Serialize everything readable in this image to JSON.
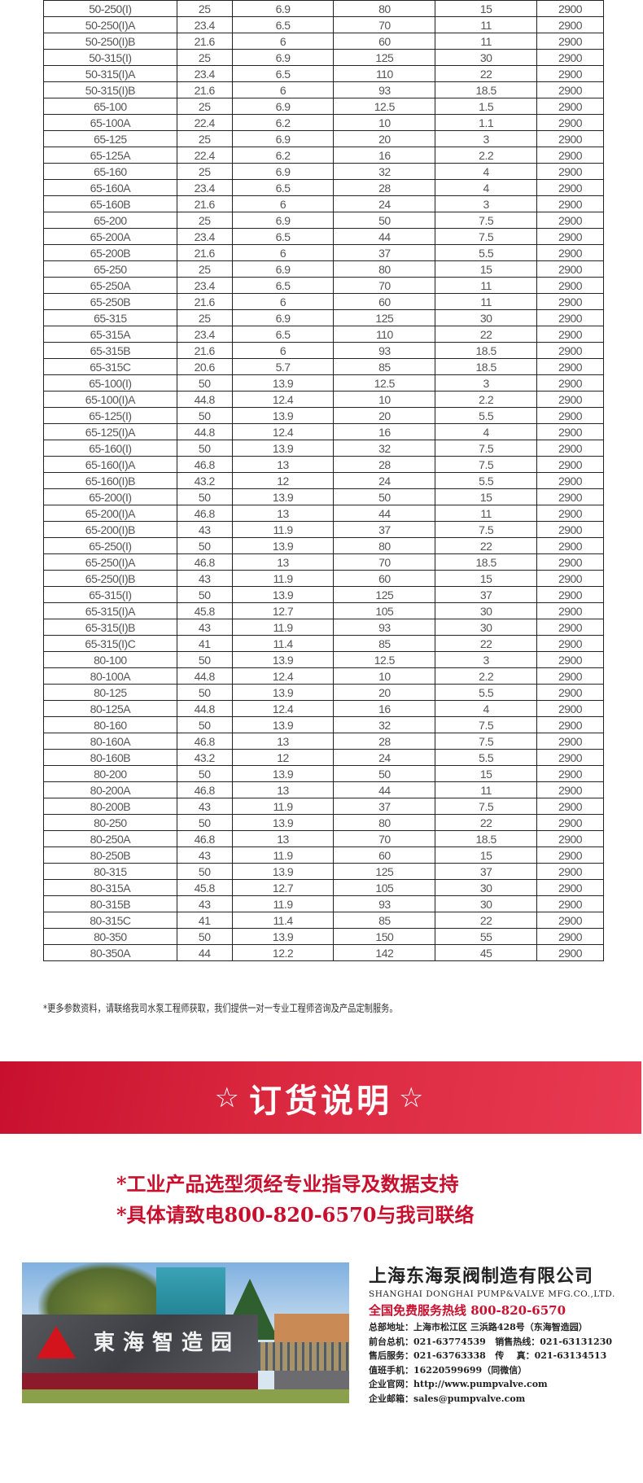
{
  "table": {
    "rows": [
      [
        "50-250(I)",
        "25",
        "6.9",
        "80",
        "15",
        "2900"
      ],
      [
        "50-250(I)A",
        "23.4",
        "6.5",
        "70",
        "11",
        "2900"
      ],
      [
        "50-250(I)B",
        "21.6",
        "6",
        "60",
        "11",
        "2900"
      ],
      [
        "50-315(I)",
        "25",
        "6.9",
        "125",
        "30",
        "2900"
      ],
      [
        "50-315(I)A",
        "23.4",
        "6.5",
        "110",
        "22",
        "2900"
      ],
      [
        "50-315(I)B",
        "21.6",
        "6",
        "93",
        "18.5",
        "2900"
      ],
      [
        "65-100",
        "25",
        "6.9",
        "12.5",
        "1.5",
        "2900"
      ],
      [
        "65-100A",
        "22.4",
        "6.2",
        "10",
        "1.1",
        "2900"
      ],
      [
        "65-125",
        "25",
        "6.9",
        "20",
        "3",
        "2900"
      ],
      [
        "65-125A",
        "22.4",
        "6.2",
        "16",
        "2.2",
        "2900"
      ],
      [
        "65-160",
        "25",
        "6.9",
        "32",
        "4",
        "2900"
      ],
      [
        "65-160A",
        "23.4",
        "6.5",
        "28",
        "4",
        "2900"
      ],
      [
        "65-160B",
        "21.6",
        "6",
        "24",
        "3",
        "2900"
      ],
      [
        "65-200",
        "25",
        "6.9",
        "50",
        "7.5",
        "2900"
      ],
      [
        "65-200A",
        "23.4",
        "6.5",
        "44",
        "7.5",
        "2900"
      ],
      [
        "65-200B",
        "21.6",
        "6",
        "37",
        "5.5",
        "2900"
      ],
      [
        "65-250",
        "25",
        "6.9",
        "80",
        "15",
        "2900"
      ],
      [
        "65-250A",
        "23.4",
        "6.5",
        "70",
        "11",
        "2900"
      ],
      [
        "65-250B",
        "21.6",
        "6",
        "60",
        "11",
        "2900"
      ],
      [
        "65-315",
        "25",
        "6.9",
        "125",
        "30",
        "2900"
      ],
      [
        "65-315A",
        "23.4",
        "6.5",
        "110",
        "22",
        "2900"
      ],
      [
        "65-315B",
        "21.6",
        "6",
        "93",
        "18.5",
        "2900"
      ],
      [
        "65-315C",
        "20.6",
        "5.7",
        "85",
        "18.5",
        "2900"
      ],
      [
        "65-100(I)",
        "50",
        "13.9",
        "12.5",
        "3",
        "2900"
      ],
      [
        "65-100(I)A",
        "44.8",
        "12.4",
        "10",
        "2.2",
        "2900"
      ],
      [
        "65-125(I)",
        "50",
        "13.9",
        "20",
        "5.5",
        "2900"
      ],
      [
        "65-125(I)A",
        "44.8",
        "12.4",
        "16",
        "4",
        "2900"
      ],
      [
        "65-160(I)",
        "50",
        "13.9",
        "32",
        "7.5",
        "2900"
      ],
      [
        "65-160(I)A",
        "46.8",
        "13",
        "28",
        "7.5",
        "2900"
      ],
      [
        "65-160(I)B",
        "43.2",
        "12",
        "24",
        "5.5",
        "2900"
      ],
      [
        "65-200(I)",
        "50",
        "13.9",
        "50",
        "15",
        "2900"
      ],
      [
        "65-200(I)A",
        "46.8",
        "13",
        "44",
        "11",
        "2900"
      ],
      [
        "65-200(I)B",
        "43",
        "11.9",
        "37",
        "7.5",
        "2900"
      ],
      [
        "65-250(I)",
        "50",
        "13.9",
        "80",
        "22",
        "2900"
      ],
      [
        "65-250(I)A",
        "46.8",
        "13",
        "70",
        "18.5",
        "2900"
      ],
      [
        "65-250(I)B",
        "43",
        "11.9",
        "60",
        "15",
        "2900"
      ],
      [
        "65-315(I)",
        "50",
        "13.9",
        "125",
        "37",
        "2900"
      ],
      [
        "65-315(I)A",
        "45.8",
        "12.7",
        "105",
        "30",
        "2900"
      ],
      [
        "65-315(I)B",
        "43",
        "11.9",
        "93",
        "30",
        "2900"
      ],
      [
        "65-315(I)C",
        "41",
        "11.4",
        "85",
        "22",
        "2900"
      ],
      [
        "80-100",
        "50",
        "13.9",
        "12.5",
        "3",
        "2900"
      ],
      [
        "80-100A",
        "44.8",
        "12.4",
        "10",
        "2.2",
        "2900"
      ],
      [
        "80-125",
        "50",
        "13.9",
        "20",
        "5.5",
        "2900"
      ],
      [
        "80-125A",
        "44.8",
        "12.4",
        "16",
        "4",
        "2900"
      ],
      [
        "80-160",
        "50",
        "13.9",
        "32",
        "7.5",
        "2900"
      ],
      [
        "80-160A",
        "46.8",
        "13",
        "28",
        "7.5",
        "2900"
      ],
      [
        "80-160B",
        "43.2",
        "12",
        "24",
        "5.5",
        "2900"
      ],
      [
        "80-200",
        "50",
        "13.9",
        "50",
        "15",
        "2900"
      ],
      [
        "80-200A",
        "46.8",
        "13",
        "44",
        "11",
        "2900"
      ],
      [
        "80-200B",
        "43",
        "11.9",
        "37",
        "7.5",
        "2900"
      ],
      [
        "80-250",
        "50",
        "13.9",
        "80",
        "22",
        "2900"
      ],
      [
        "80-250A",
        "46.8",
        "13",
        "70",
        "18.5",
        "2900"
      ],
      [
        "80-250B",
        "43",
        "11.9",
        "60",
        "15",
        "2900"
      ],
      [
        "80-315",
        "50",
        "13.9",
        "125",
        "37",
        "2900"
      ],
      [
        "80-315A",
        "45.8",
        "12.7",
        "105",
        "30",
        "2900"
      ],
      [
        "80-315B",
        "43",
        "11.9",
        "93",
        "30",
        "2900"
      ],
      [
        "80-315C",
        "41",
        "11.4",
        "85",
        "22",
        "2900"
      ],
      [
        "80-350",
        "50",
        "13.9",
        "150",
        "55",
        "2900"
      ],
      [
        "80-350A",
        "44",
        "12.2",
        "142",
        "45",
        "2900"
      ]
    ]
  },
  "note": "*更多参数资料，请联络我司水泵工程师获取，我们提供一对一专业工程师咨询及产品定制服务。",
  "banner": {
    "title": "订货说明",
    "star": "☆",
    "accent": "#c8102e"
  },
  "order_lines": [
    "*工业产品选型须经专业指导及数据支持",
    "*具体请致电800-820-6570与我司联络"
  ],
  "photo": {
    "sign_text": "東海智造园",
    "logo": "donghai-logo"
  },
  "company": {
    "name_cn": "上海东海泵阀制造有限公司",
    "name_en": "SHANGHAI DONGHAI PUMP&VALVE MFG.CO.,LTD.",
    "hotline": "全国免费服务热线 800-820-6570",
    "lines": [
      "总部地址：上海市松江区 三浜路428号（东海智造园）",
      "前台总机：021-63774539   销售热线：021-63131230",
      "售后服务：021-63763338   传    真：021-63134513",
      "值班手机：16220599699（同微信）",
      "企业官网：http://www.pumpvalve.com",
      "企业邮箱：sales@pumpvalve.com"
    ]
  }
}
